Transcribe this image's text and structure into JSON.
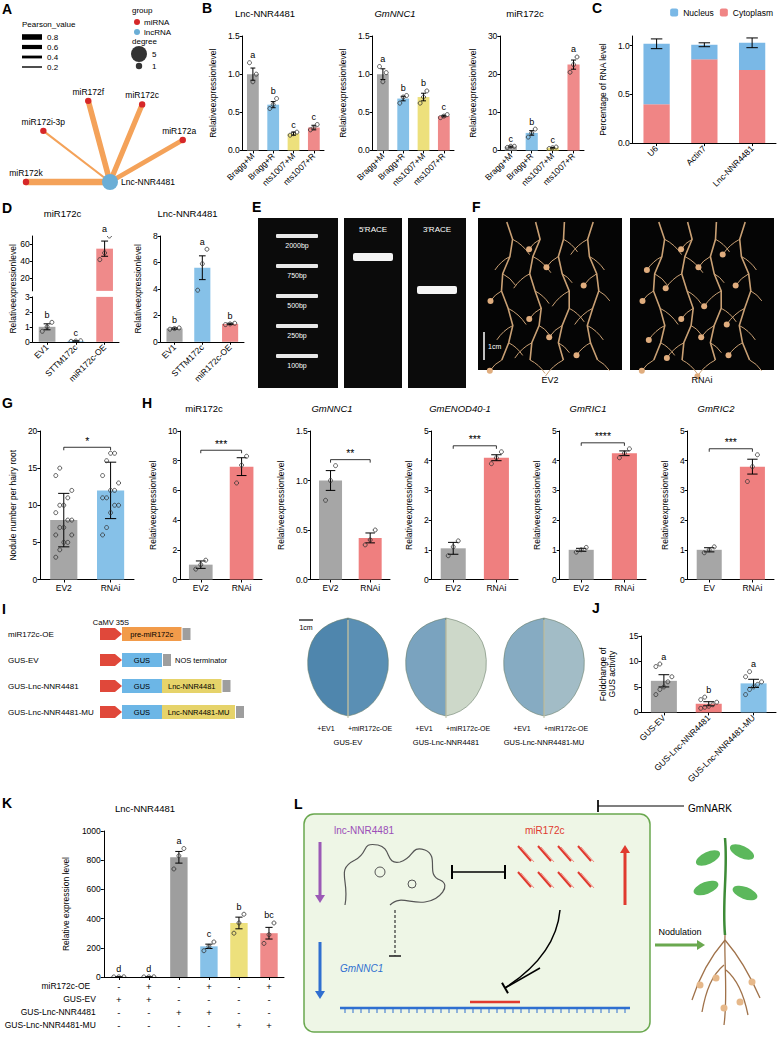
{
  "chart_data": [
    {
      "panel": "B",
      "type": "bar",
      "title": "Lnc-NNR4481",
      "ylabel": "Relativeexpressionlevel",
      "categories": [
        "Bragg+M",
        "Bragg+R",
        "nts1007+M",
        "nts1007+R"
      ],
      "colors": [
        "#a6a6a6",
        "#86c1e8",
        "#ede07c",
        "#ef8a8a"
      ],
      "values": [
        1.0,
        0.6,
        0.22,
        0.3
      ],
      "errors": [
        0.08,
        0.04,
        0.02,
        0.03
      ],
      "points": [
        [
          1.15,
          0.9,
          1.0
        ],
        [
          0.55,
          0.6,
          0.68
        ],
        [
          0.2,
          0.22,
          0.24
        ],
        [
          0.27,
          0.3,
          0.34
        ]
      ],
      "letters": [
        "a",
        "b",
        "c",
        "c"
      ],
      "ylim": [
        0,
        1.5
      ],
      "yticks": [
        {
          "value": 0,
          "label": "0.0"
        },
        0.5,
        {
          "value": 1,
          "label": "1.0"
        },
        1.5
      ]
    },
    {
      "type": "bar",
      "title": "GmNNC1",
      "ylabel": "Relativeexpressionlevel",
      "categories": [
        "Bragg+M",
        "Bragg+R",
        "nts1007+M",
        "nts1007+R"
      ],
      "colors": [
        "#a6a6a6",
        "#86c1e8",
        "#ede07c",
        "#ef8a8a"
      ],
      "values": [
        1.0,
        0.68,
        0.7,
        0.45
      ],
      "errors": [
        0.07,
        0.03,
        0.05,
        0.01
      ],
      "points": [
        [
          1.1,
          0.9,
          1.02
        ],
        [
          0.62,
          0.7,
          0.72
        ],
        [
          0.62,
          0.7,
          0.78
        ],
        [
          0.43,
          0.45,
          0.47
        ]
      ],
      "letters": [
        "a",
        "b",
        "b",
        "c"
      ],
      "ylim": [
        0,
        1.5
      ],
      "yticks": [
        {
          "value": 0,
          "label": "0.0"
        },
        0.5,
        {
          "value": 1,
          "label": "1.0"
        },
        1.5
      ]
    },
    {
      "type": "bar",
      "title": "miR172c",
      "ylabel": "Relativeexpressionlevel",
      "categories": [
        "Bragg+M",
        "Bragg+R",
        "nts1007+M",
        "nts1007+R"
      ],
      "colors": [
        "#a6a6a6",
        "#86c1e8",
        "#ede07c",
        "#ef8a8a"
      ],
      "values": [
        1.0,
        4.6,
        0.7,
        22.5
      ],
      "errors": [
        0.15,
        0.6,
        0.1,
        1.2
      ],
      "points": [
        [
          0.8,
          1.1,
          1.1
        ],
        [
          3.5,
          4.6,
          5.6
        ],
        [
          0.5,
          0.7,
          0.9
        ],
        [
          20.5,
          22.5,
          24.5
        ]
      ],
      "letters": [
        "c",
        "b",
        "c",
        "a"
      ],
      "ylim": [
        0,
        30
      ],
      "yticks": [
        0,
        10,
        20,
        30
      ]
    },
    {
      "panel": "C",
      "type": "bar",
      "stacked": true,
      "legend": "top-right",
      "ylabel": "Percentage of RNA level",
      "categories": [
        "U6",
        "Actin7",
        "Lnc-NNR4481"
      ],
      "series": [
        {
          "name": "Nucleus",
          "color": "#7ab8e6",
          "values": [
            0.62,
            0.15,
            0.28
          ],
          "errors": [
            0.05,
            0.02,
            0.05
          ]
        },
        {
          "name": "Cytoplasm",
          "color": "#f08585",
          "values": [
            0.4,
            0.86,
            0.75
          ]
        }
      ],
      "ylim": [
        0,
        1.1
      ],
      "yticks": [
        {
          "value": 0,
          "label": "0.0"
        },
        0.5,
        {
          "value": 1,
          "label": "1.0"
        }
      ]
    },
    {
      "panel": "D",
      "type": "bar",
      "title": "miR172c",
      "ylabel": "Relativeexpressionlevel",
      "categories": [
        "EV1",
        "STTM172c",
        "miR172c-OE"
      ],
      "colors": [
        "#a6a6a6",
        "#86c1e8",
        "#ef8a8a"
      ],
      "values": [
        1.0,
        0.05,
        55
      ],
      "errors": [
        0.2,
        0.02,
        9
      ],
      "points": [
        [
          0.7,
          1.0,
          1.3
        ],
        [
          0.03,
          0.05,
          0.07
        ],
        [
          42,
          50,
          70
        ]
      ],
      "letters": [
        "b",
        "c",
        "a"
      ],
      "ylim": [
        0,
        70
      ],
      "axis_break": [
        3,
        5
      ],
      "yticks": [
        0,
        1,
        2,
        3,
        20,
        40,
        60
      ]
    },
    {
      "type": "bar",
      "title": "Lnc-NNR4481",
      "ylabel": "Relativeexpressionlevel",
      "categories": [
        "EV1",
        "STTM172c",
        "miR172c-OE"
      ],
      "colors": [
        "#a6a6a6",
        "#86c1e8",
        "#ef8a8a"
      ],
      "values": [
        1.0,
        5.6,
        1.35
      ],
      "errors": [
        0.05,
        0.9,
        0.05
      ],
      "points": [
        [
          0.95,
          1.0,
          1.05
        ],
        [
          3.9,
          5.9,
          7.0
        ],
        [
          1.3,
          1.35,
          1.4
        ]
      ],
      "letters": [
        "b",
        "a",
        "b"
      ],
      "ylim": [
        0,
        8
      ],
      "yticks": [
        0,
        2,
        4,
        6,
        8
      ]
    },
    {
      "panel": "G",
      "type": "bar",
      "ylabel": "Nodule number per hairy root",
      "categories": [
        "EV2",
        "RNAi"
      ],
      "colors": [
        "#a6a6a6",
        "#86c1e8"
      ],
      "values": [
        8,
        12
      ],
      "errors": [
        3.6,
        3.8
      ],
      "points": [
        [
          3,
          4,
          5,
          5,
          6,
          6,
          7,
          7,
          8,
          8,
          9,
          10,
          10,
          11,
          12,
          14,
          15
        ],
        [
          6,
          7,
          9,
          10,
          10,
          11,
          11,
          12,
          12,
          13,
          14,
          16,
          17,
          17
        ]
      ],
      "sig": "*",
      "ylim": [
        0,
        20
      ],
      "yticks": [
        0,
        5,
        10,
        15,
        20
      ]
    },
    {
      "panel": "H",
      "type": "bar",
      "title": "miR172c",
      "ylabel": "Relativeexpressionlevel",
      "categories": [
        "EV2",
        "RNAi"
      ],
      "colors": [
        "#a6a6a6",
        "#ef7f7f"
      ],
      "values": [
        1.0,
        7.6
      ],
      "errors": [
        0.25,
        0.6
      ],
      "points": [
        [
          0.7,
          1.0,
          1.3
        ],
        [
          6.5,
          7.7,
          8.3
        ]
      ],
      "sig": "***",
      "ylim": [
        0,
        10
      ],
      "yticks": [
        0,
        2,
        4,
        6,
        8,
        10
      ]
    },
    {
      "type": "bar",
      "title": "GmNNC1",
      "ylabel": "Relativeexpressionlevel",
      "categories": [
        "EV2",
        "RNAi"
      ],
      "colors": [
        "#a6a6a6",
        "#ef7f7f"
      ],
      "values": [
        1.0,
        0.42
      ],
      "errors": [
        0.1,
        0.05
      ],
      "points": [
        [
          0.8,
          1.0,
          1.15
        ],
        [
          0.35,
          0.4,
          0.5
        ]
      ],
      "sig": "**",
      "ylim": [
        0,
        1.5
      ],
      "yticks": [
        {
          "value": 0,
          "label": "0.0"
        },
        0.5,
        {
          "value": 1,
          "label": "1.0"
        },
        1.5
      ]
    },
    {
      "type": "bar",
      "title": "GmENOD40-1",
      "ylabel": "Relativeexpressionlevel",
      "categories": [
        "EV2",
        "RNAi"
      ],
      "colors": [
        "#a6a6a6",
        "#ef7f7f"
      ],
      "values": [
        1.05,
        4.1
      ],
      "errors": [
        0.2,
        0.1
      ],
      "points": [
        [
          0.8,
          1.1,
          1.3
        ],
        [
          3.9,
          4.1,
          4.3
        ]
      ],
      "sig": "***",
      "ylim": [
        0,
        5
      ],
      "yticks": [
        0,
        1,
        2,
        3,
        4,
        5
      ]
    },
    {
      "type": "bar",
      "title": "GmRIC1",
      "ylabel": "Relativeexpressionlevel",
      "categories": [
        "EV2",
        "RNAi"
      ],
      "colors": [
        "#a6a6a6",
        "#ef7f7f"
      ],
      "values": [
        1.0,
        4.25
      ],
      "errors": [
        0.05,
        0.08
      ],
      "points": [
        [
          0.92,
          1.0,
          1.08
        ],
        [
          4.1,
          4.25,
          4.4
        ]
      ],
      "sig": "****",
      "ylim": [
        0,
        5
      ],
      "yticks": [
        0,
        1,
        2,
        3,
        4,
        5
      ]
    },
    {
      "type": "bar",
      "title": "GmRIC2",
      "ylabel": "Relativeexpressionlevel",
      "categories": [
        "EV",
        "RNAi"
      ],
      "colors": [
        "#a6a6a6",
        "#ef7f7f"
      ],
      "values": [
        1.0,
        3.8
      ],
      "errors": [
        0.07,
        0.25
      ],
      "points": [
        [
          0.9,
          1.0,
          1.1
        ],
        [
          3.3,
          3.8,
          4.2
        ]
      ],
      "sig": "***",
      "ylim": [
        0,
        5
      ],
      "yticks": [
        0,
        1,
        2,
        3,
        4,
        5
      ]
    },
    {
      "panel": "J",
      "type": "bar",
      "ylabel": "Foldchange of GUS activity",
      "categories": [
        "GUS-EV",
        "GUS-Lnc-NNR4481",
        "GUS-Lnc-NNR4481-MU"
      ],
      "colors": [
        "#a6a6a6",
        "#ef7f7f",
        "#86c1e8"
      ],
      "values": [
        6.2,
        1.7,
        5.7
      ],
      "errors": [
        1.2,
        0.4,
        0.8
      ],
      "points": [
        [
          3.5,
          4.5,
          5,
          6,
          7,
          9,
          9.5
        ],
        [
          0.8,
          1,
          1.2,
          1.5,
          2,
          2.5,
          3
        ],
        [
          3.5,
          4.5,
          5,
          5.5,
          6,
          7,
          8
        ]
      ],
      "letters": [
        "a",
        "b",
        "a"
      ],
      "ylim": [
        0,
        15
      ],
      "yticks": [
        0,
        5,
        10,
        15
      ]
    },
    {
      "panel": "K",
      "type": "bar",
      "title": "Lnc-NNR4481",
      "ylabel": "Relative expression level",
      "categories": [
        null,
        null,
        null,
        null,
        null,
        null
      ],
      "colors": [
        "#cfcfcf",
        "#cfcfcf",
        "#9e9e9e",
        "#86c1e8",
        "#ede07c",
        "#ef8a8a"
      ],
      "values": [
        1,
        1,
        820,
        210,
        370,
        300
      ],
      "errors": [
        0.5,
        0.5,
        40,
        15,
        40,
        40
      ],
      "points": [
        [
          0.5,
          1,
          1.5
        ],
        [
          0.5,
          1,
          1.5
        ],
        [
          740,
          830,
          880
        ],
        [
          180,
          210,
          240
        ],
        [
          300,
          370,
          430
        ],
        [
          230,
          290,
          370
        ]
      ],
      "letters": [
        "d",
        "d",
        "a",
        "c",
        "b",
        "bc"
      ],
      "ylim": [
        0,
        1000
      ],
      "yticks": [
        0,
        200,
        400,
        600,
        800,
        1000
      ],
      "rows": [
        {
          "name": "miR172c-OE",
          "signs": [
            "-",
            "+",
            "-",
            "+",
            "-",
            "+"
          ]
        },
        {
          "name": "GUS-EV",
          "signs": [
            "+",
            "+",
            "-",
            "-",
            "-",
            "-"
          ]
        },
        {
          "name": "GUS-Lnc-NNR4481",
          "signs": [
            "-",
            "-",
            "+",
            "+",
            "-",
            "-"
          ]
        },
        {
          "name": "GUS-Lnc-NNR4481-MU",
          "signs": [
            "-",
            "-",
            "-",
            "-",
            "+",
            "+"
          ]
        }
      ]
    }
  ],
  "network": {
    "panel": "A",
    "nodes": [
      {
        "label": "miR172k",
        "group": "miRNA",
        "degree": 1
      },
      {
        "label": "miR172i-3p",
        "group": "miRNA",
        "degree": 1
      },
      {
        "label": "miR172f",
        "group": "miRNA",
        "degree": 1
      },
      {
        "label": "miR172c",
        "group": "miRNA",
        "degree": 1
      },
      {
        "label": "miR172a",
        "group": "miRNA",
        "degree": 1
      },
      {
        "label": "Lnc-NNR4481",
        "group": "lncRNA",
        "degree": 5
      }
    ],
    "edges": [
      {
        "source": "miR172k",
        "target": "Lnc-NNR4481",
        "pearson": 0.9
      },
      {
        "source": "miR172i-3p",
        "target": "Lnc-NNR4481",
        "pearson": 0.3
      },
      {
        "source": "miR172f",
        "target": "Lnc-NNR4481",
        "pearson": 0.8
      },
      {
        "source": "miR172c",
        "target": "Lnc-NNR4481",
        "pearson": 0.75
      },
      {
        "source": "miR172a",
        "target": "Lnc-NNR4481",
        "pearson": 0.7
      }
    ],
    "group_title": "group",
    "groups": [
      {
        "name": "miRNA",
        "color": "#d62728"
      },
      {
        "name": "lncRNA",
        "color": "#6baed6"
      }
    ],
    "degree_title": "degree",
    "degree_ticks": [
      5,
      1
    ],
    "pearson_title": "Pearson_value",
    "pearson_ticks": [
      0.8,
      0.6,
      0.4,
      0.2
    ],
    "edge_color": "#f4a259"
  },
  "gel": {
    "panel": "E",
    "ladder": [
      "2000bp",
      "750bp",
      "500bp",
      "250bp",
      "100bp"
    ],
    "lanes": [
      "5'RACE",
      "3'RACE"
    ],
    "band_at": [
      0.7,
      1.8
    ]
  },
  "roots": {
    "panel": "F",
    "labels": [
      "EV2",
      "RNAi"
    ],
    "scale": "1cm"
  },
  "constructs": {
    "panel": "I",
    "constructs": [
      {
        "name": "miR172c-OE",
        "parts": [
          {
            "kind": "promoter",
            "label": "CaMV 35S",
            "color": "#e0483a"
          },
          {
            "kind": "insert",
            "label": "pre-miR172c",
            "color": "#f29b4a"
          },
          {
            "kind": "terminator",
            "color": "#9e9e9e"
          }
        ]
      },
      {
        "name": "GUS-EV",
        "parts": [
          {
            "kind": "promoter",
            "color": "#e0483a"
          },
          {
            "kind": "insert",
            "label": "GUS",
            "color": "#6cb6e6"
          },
          {
            "kind": "terminator",
            "label": "NOS terminator",
            "color": "#9e9e9e"
          }
        ]
      },
      {
        "name": "GUS-Lnc-NNR4481",
        "parts": [
          {
            "kind": "promoter",
            "color": "#e0483a"
          },
          {
            "kind": "insert",
            "label": "GUS",
            "color": "#6cb6e6"
          },
          {
            "kind": "insert",
            "label": "Lnc-NNR4481",
            "color": "#e6d36a"
          },
          {
            "kind": "terminator",
            "color": "#9e9e9e"
          }
        ]
      },
      {
        "name": "GUS-Lnc-NNR4481-MU",
        "parts": [
          {
            "kind": "promoter",
            "color": "#e0483a"
          },
          {
            "kind": "insert",
            "label": "GUS",
            "color": "#6cb6e6"
          },
          {
            "kind": "insert",
            "label": "Lnc-NNR4481-MU",
            "color": "#e6d36a"
          },
          {
            "kind": "terminator",
            "color": "#9e9e9e"
          }
        ]
      }
    ],
    "leaves": [
      {
        "title": "GUS-EV",
        "left": "+EV1",
        "right": "+miR172c-OE",
        "colors": [
          "#4f86ad",
          "#5a8fb4"
        ]
      },
      {
        "title": "GUS-Lnc-NNR4481",
        "left": "+EV1",
        "right": "+miR172c-OE",
        "colors": [
          "#7aa3bf",
          "#cdd8c9"
        ]
      },
      {
        "title": "GUS-Lnc-NNR4481-MU",
        "left": "+EV1",
        "right": "+miR172c-OE",
        "colors": [
          "#86abc2",
          "#a2bcc6"
        ]
      }
    ],
    "scale": "1cm"
  },
  "model": {
    "panel": "L",
    "lnc": "lnc-NNR4481",
    "mirna": "miR172c",
    "gene": "GmNNC1",
    "regulator": "GmNARK",
    "process": "Nodulation"
  }
}
